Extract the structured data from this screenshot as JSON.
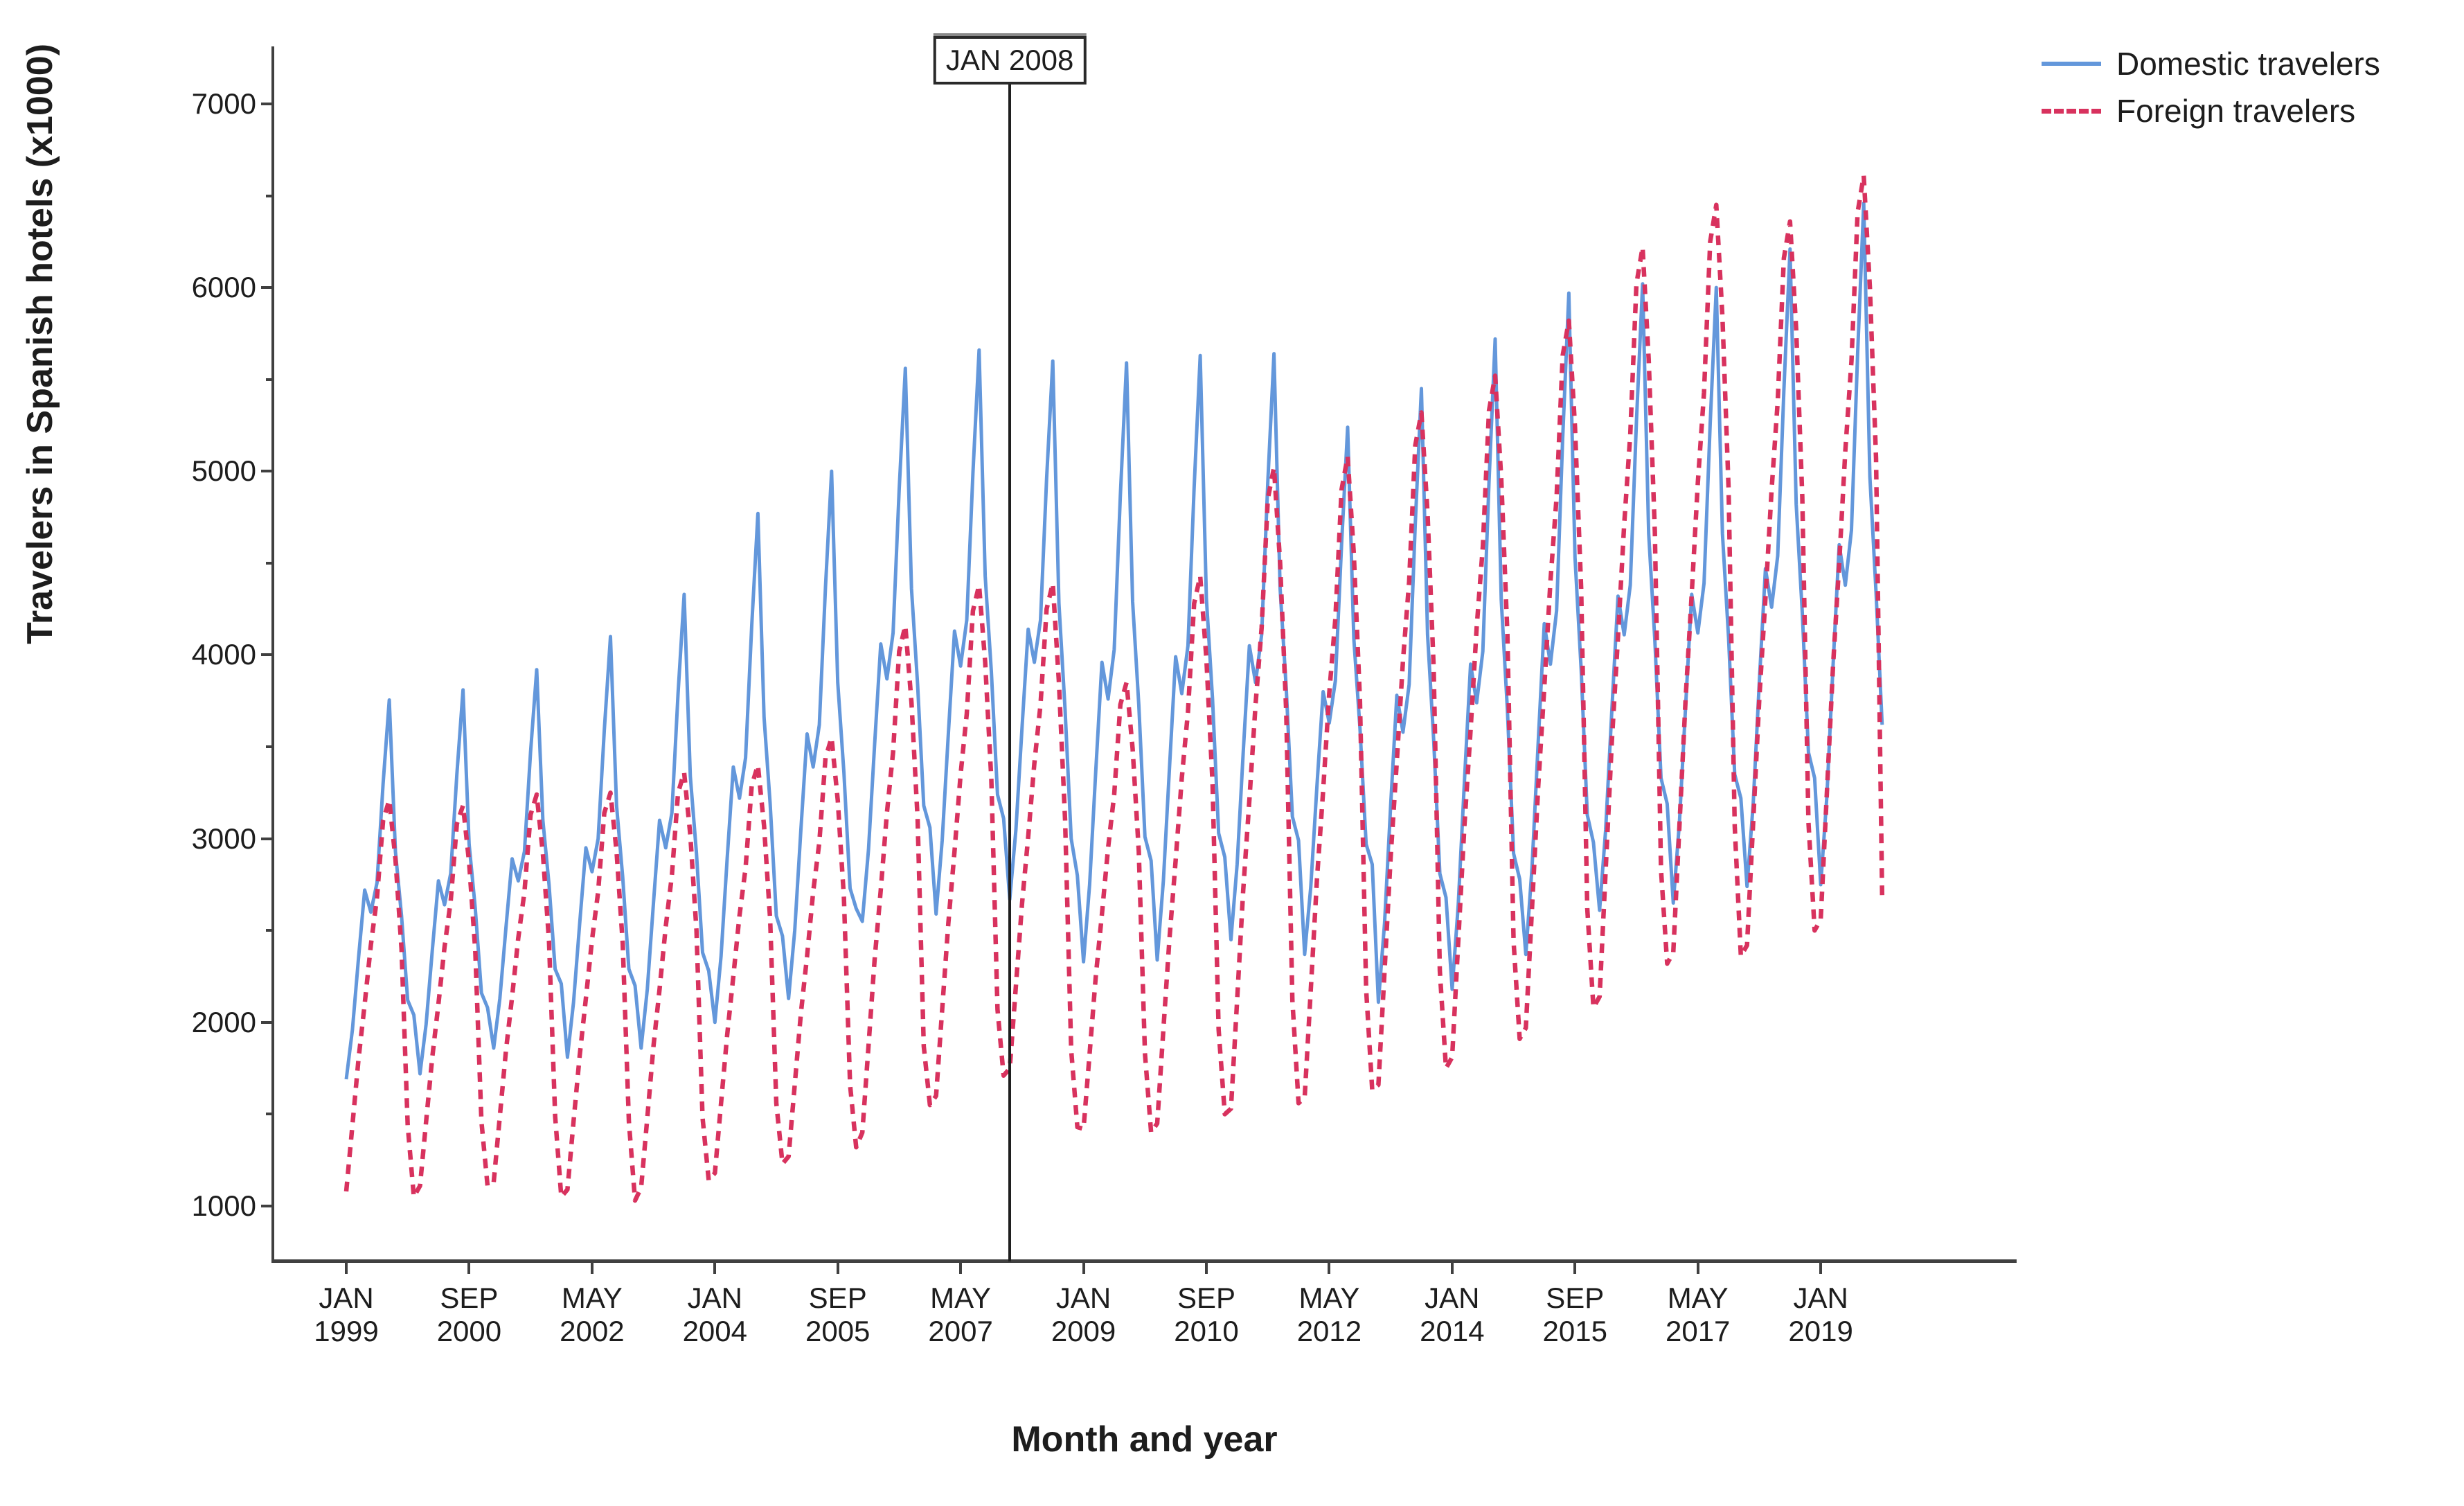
{
  "y_axis": {
    "title": "Travelers in Spanish hotels (x1000)",
    "tick_values": [
      1000,
      2000,
      3000,
      4000,
      5000,
      6000,
      7000
    ],
    "minor_tick_values": [
      1500,
      2500,
      3500,
      4500,
      5500,
      6500
    ]
  },
  "x_axis": {
    "title": "Month and year",
    "ticks": [
      {
        "month": "JAN",
        "year": "1999",
        "month_index": 0
      },
      {
        "month": "SEP",
        "year": "2000",
        "month_index": 20
      },
      {
        "month": "MAY",
        "year": "2002",
        "month_index": 40
      },
      {
        "month": "JAN",
        "year": "2004",
        "month_index": 60
      },
      {
        "month": "SEP",
        "year": "2005",
        "month_index": 80
      },
      {
        "month": "MAY",
        "year": "2007",
        "month_index": 100
      },
      {
        "month": "JAN",
        "year": "2009",
        "month_index": 120
      },
      {
        "month": "SEP",
        "year": "2010",
        "month_index": 140
      },
      {
        "month": "MAY",
        "year": "2012",
        "month_index": 160
      },
      {
        "month": "JAN",
        "year": "2014",
        "month_index": 180
      },
      {
        "month": "SEP",
        "year": "2015",
        "month_index": 200
      },
      {
        "month": "MAY",
        "year": "2017",
        "month_index": 220
      },
      {
        "month": "JAN",
        "year": "2019",
        "month_index": 240
      }
    ]
  },
  "reference_line": {
    "label": "JAN 2008",
    "month_index": 108
  },
  "legend": [
    {
      "label": "Domestic travelers",
      "style": "solid",
      "color": "#6397db"
    },
    {
      "label": "Foreign travelers",
      "style": "dashed",
      "color": "#d8325e"
    }
  ],
  "colors": {
    "domestic": "#6397db",
    "foreign": "#d8325e",
    "axis": "#404040",
    "reference_line": "#1f1f1f",
    "text": "#1d1d1d"
  },
  "chart_data": {
    "type": "line",
    "title": "",
    "xlabel": "Month and year",
    "ylabel": "Travelers in Spanish hotels (x1000)",
    "x_unit": "month",
    "x_start": "1999-01",
    "x_end": "2019-11",
    "x_months_since_jan1999_step": 1,
    "ylim": [
      650,
      7320
    ],
    "legend_position": "top-right",
    "grid": false,
    "series": [
      {
        "name": "Domestic travelers",
        "style": "solid",
        "color": "#6397db",
        "values": [
          1690,
          1960,
          2350,
          2720,
          2600,
          2760,
          3300,
          3755,
          2930,
          2580,
          2120,
          2040,
          1720,
          1990,
          2390,
          2770,
          2640,
          2810,
          3350,
          3810,
          2970,
          2620,
          2160,
          2080,
          1860,
          2130,
          2520,
          2890,
          2770,
          2930,
          3470,
          3920,
          3100,
          2750,
          2290,
          2210,
          1810,
          2110,
          2540,
          2950,
          2820,
          3000,
          3590,
          4100,
          3180,
          2790,
          2290,
          2200,
          1860,
          2180,
          2650,
          3100,
          2950,
          3140,
          3790,
          4330,
          3340,
          2920,
          2380,
          2280,
          2000,
          2360,
          2890,
          3390,
          3220,
          3440,
          4160,
          4770,
          3660,
          3190,
          2580,
          2470,
          2130,
          2500,
          3050,
          3570,
          3390,
          3620,
          4370,
          5000,
          3850,
          3360,
          2730,
          2620,
          2550,
          2940,
          3510,
          4060,
          3870,
          4120,
          4900,
          5560,
          4360,
          3840,
          3180,
          3060,
          2590,
          2990,
          3570,
          4130,
          3940,
          4190,
          4990,
          5660,
          4430,
          3910,
          3240,
          3110,
          2670,
          3050,
          3610,
          4140,
          3960,
          4190,
          4960,
          5600,
          4280,
          3700,
          3000,
          2800,
          2330,
          2750,
          3370,
          3960,
          3760,
          4030,
          4870,
          5590,
          4290,
          3730,
          3010,
          2880,
          2340,
          2770,
          3390,
          3990,
          3790,
          4050,
          4910,
          5630,
          4310,
          3760,
          3030,
          2900,
          2450,
          2860,
          3470,
          4050,
          3850,
          4110,
          4940,
          5640,
          4360,
          3820,
          3120,
          2990,
          2370,
          2740,
          3290,
          3800,
          3630,
          3860,
          4600,
          5240,
          4090,
          3600,
          2970,
          2860,
          2110,
          2540,
          3180,
          3780,
          3580,
          3840,
          4710,
          5450,
          4110,
          3540,
          2810,
          2680,
          2180,
          2640,
          3310,
          3950,
          3740,
          4020,
          4940,
          5720,
          4300,
          3700,
          2920,
          2780,
          2370,
          2840,
          3520,
          4170,
          3950,
          4240,
          5180,
          5970,
          4530,
          3920,
          3130,
          2980,
          2610,
          3050,
          3700,
          4320,
          4110,
          4380,
          5270,
          6020,
          4660,
          4080,
          3330,
          3190,
          2650,
          3090,
          3720,
          4330,
          4120,
          4390,
          5260,
          6000,
          4660,
          4090,
          3350,
          3220,
          2740,
          3190,
          3850,
          4470,
          4260,
          4540,
          5440,
          6210,
          4820,
          4230,
          3470,
          3330,
          2750,
          3230,
          3940,
          4600,
          4380,
          4680,
          5640,
          6460,
          4970,
          4340,
          3620
        ]
      },
      {
        "name": "Foreign travelers",
        "style": "dashed",
        "color": "#d8325e",
        "values": [
          1080,
          1440,
          1800,
          2100,
          2420,
          2680,
          3100,
          3210,
          2890,
          2400,
          1440,
          1050,
          1110,
          1460,
          1810,
          2100,
          2410,
          2660,
          3080,
          3180,
          2870,
          2390,
          1460,
          1110,
          1130,
          1490,
          1850,
          2140,
          2460,
          2710,
          3130,
          3240,
          2920,
          2440,
          1490,
          1050,
          1090,
          1460,
          1820,
          2130,
          2450,
          2710,
          3140,
          3250,
          2930,
          2430,
          1460,
          1030,
          1100,
          1480,
          1870,
          2180,
          2520,
          2800,
          3250,
          3360,
          3020,
          2500,
          1480,
          1140,
          1180,
          1560,
          1930,
          2250,
          2580,
          2840,
          3290,
          3400,
          3070,
          2560,
          1560,
          1230,
          1270,
          1660,
          2050,
          2360,
          2710,
          2980,
          3440,
          3550,
          3210,
          2680,
          1660,
          1320,
          1400,
          1870,
          2340,
          2720,
          3140,
          3470,
          4020,
          4160,
          3740,
          3110,
          1870,
          1550,
          1600,
          2070,
          2540,
          2930,
          3350,
          3680,
          4240,
          4380,
          3960,
          3320,
          2070,
          1710,
          1750,
          2200,
          2650,
          3010,
          3410,
          3730,
          4250,
          4390,
          3850,
          3100,
          1850,
          1430,
          1420,
          1830,
          2250,
          2590,
          2950,
          3240,
          3730,
          3850,
          3490,
          2930,
          1830,
          1400,
          1450,
          1960,
          2460,
          2880,
          3330,
          3690,
          4280,
          4430,
          3980,
          3300,
          1960,
          1500,
          1530,
          2120,
          2720,
          3210,
          3730,
          4150,
          4850,
          5020,
          4500,
          3690,
          2120,
          1560,
          1590,
          2180,
          2780,
          3260,
          3790,
          4200,
          4900,
          5080,
          4550,
          3750,
          2180,
          1630,
          1660,
          2280,
          2900,
          3420,
          3970,
          4400,
          5140,
          5320,
          4770,
          3930,
          2280,
          1750,
          1810,
          2440,
          3070,
          3590,
          4150,
          4590,
          5330,
          5520,
          4960,
          4110,
          2440,
          1910,
          1970,
          2620,
          3280,
          3820,
          4400,
          4860,
          5630,
          5820,
          5240,
          4360,
          2620,
          2080,
          2140,
          2830,
          3530,
          4100,
          4710,
          5200,
          6020,
          6220,
          5610,
          4670,
          2830,
          2320,
          2380,
          3070,
          3760,
          4330,
          4940,
          5430,
          6250,
          6450,
          5840,
          4900,
          3070,
          2360,
          2420,
          3090,
          3760,
          4310,
          4900,
          5380,
          6160,
          6360,
          5770,
          4860,
          3090,
          2500,
          2560,
          3250,
          3940,
          4500,
          5110,
          5600,
          6410,
          6610,
          6000,
          5070,
          2690
        ]
      }
    ]
  }
}
